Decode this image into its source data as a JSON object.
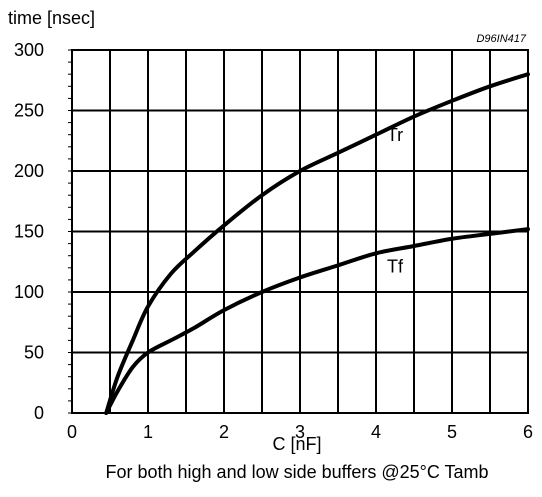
{
  "chart_data": {
    "type": "line",
    "title": "",
    "ylabel": "time [nsec]",
    "xlabel": "C [nF]",
    "code": "D96IN417",
    "caption": "For both high and low side buffers @25°C Tamb",
    "xlim": [
      0,
      6
    ],
    "ylim": [
      0,
      300
    ],
    "xticks": [
      0,
      0.5,
      1,
      1.5,
      2,
      2.5,
      3,
      3.5,
      4,
      4.5,
      5,
      5.5,
      6
    ],
    "xtick_labels": [
      "0",
      "1",
      "2",
      "3",
      "4",
      "5",
      "6"
    ],
    "xtick_label_values": [
      0,
      1,
      2,
      3,
      4,
      5,
      6
    ],
    "yticks": [
      0,
      50,
      100,
      150,
      200,
      250,
      300
    ],
    "ytick_labels": [
      "0",
      "50",
      "100",
      "150",
      "200",
      "250",
      "300"
    ],
    "grid": true,
    "series": [
      {
        "name": "Tr",
        "x": [
          0.45,
          0.6,
          0.8,
          1.0,
          1.3,
          1.6,
          2.0,
          2.5,
          3.0,
          3.5,
          4.0,
          4.5,
          5.0,
          5.5,
          6.0
        ],
        "y": [
          0,
          30,
          60,
          88,
          115,
          133,
          155,
          180,
          200,
          215,
          230,
          245,
          258,
          270,
          280
        ]
      },
      {
        "name": "Tf",
        "x": [
          0.45,
          0.6,
          0.8,
          1.0,
          1.3,
          1.6,
          2.0,
          2.5,
          3.0,
          3.5,
          4.0,
          4.5,
          5.0,
          5.5,
          6.0
        ],
        "y": [
          0,
          18,
          38,
          50,
          60,
          70,
          85,
          100,
          112,
          122,
          132,
          138,
          144,
          148,
          152
        ]
      }
    ],
    "series_labels": [
      {
        "text": "Tr",
        "x": 4.25,
        "y": 225
      },
      {
        "text": "Tf",
        "x": 4.25,
        "y": 116
      }
    ]
  }
}
